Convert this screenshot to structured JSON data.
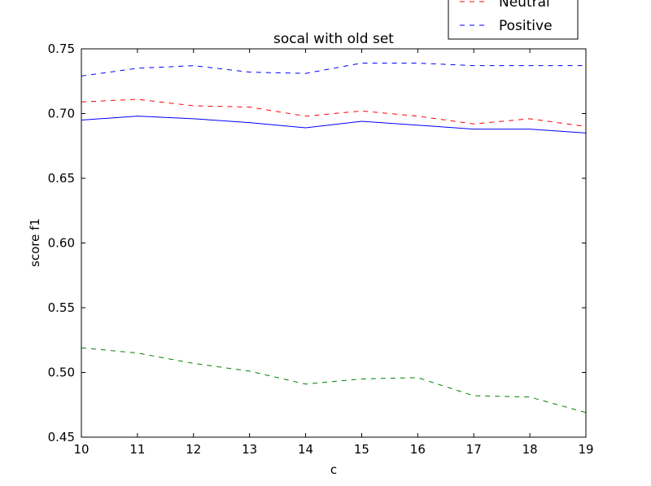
{
  "chart_data": {
    "type": "line",
    "title": "socal with old set",
    "xlabel": "c",
    "ylabel": "score f1",
    "x": [
      10,
      11,
      12,
      13,
      14,
      15,
      16,
      17,
      18,
      19
    ],
    "xlim": [
      10,
      19
    ],
    "ylim": [
      0.45,
      0.75
    ],
    "x_ticks": [
      "10",
      "11",
      "12",
      "13",
      "14",
      "15",
      "16",
      "17",
      "18",
      "19"
    ],
    "y_ticks": [
      "0.45",
      "0.50",
      "0.55",
      "0.60",
      "0.65",
      "0.70",
      "0.75"
    ],
    "grid": false,
    "legend_position": "top-right",
    "series": [
      {
        "name": "",
        "style": "solid",
        "color": "#0000ff",
        "values": [
          0.695,
          0.698,
          0.696,
          0.693,
          0.689,
          0.694,
          0.691,
          0.688,
          0.688,
          0.685
        ]
      },
      {
        "name": "Neutral",
        "style": "dashed",
        "color": "#ff0000",
        "values": [
          0.709,
          0.711,
          0.706,
          0.705,
          0.698,
          0.702,
          0.698,
          0.692,
          0.696,
          0.69
        ]
      },
      {
        "name": "Positive",
        "style": "dashed",
        "color": "#0000ff",
        "values": [
          0.729,
          0.735,
          0.737,
          0.732,
          0.731,
          0.739,
          0.739,
          0.737,
          0.737,
          0.737
        ]
      },
      {
        "name": "",
        "style": "dashed",
        "color": "#008000",
        "values": [
          0.519,
          0.515,
          0.507,
          0.501,
          0.491,
          0.495,
          0.496,
          0.482,
          0.481,
          0.469
        ]
      }
    ]
  }
}
